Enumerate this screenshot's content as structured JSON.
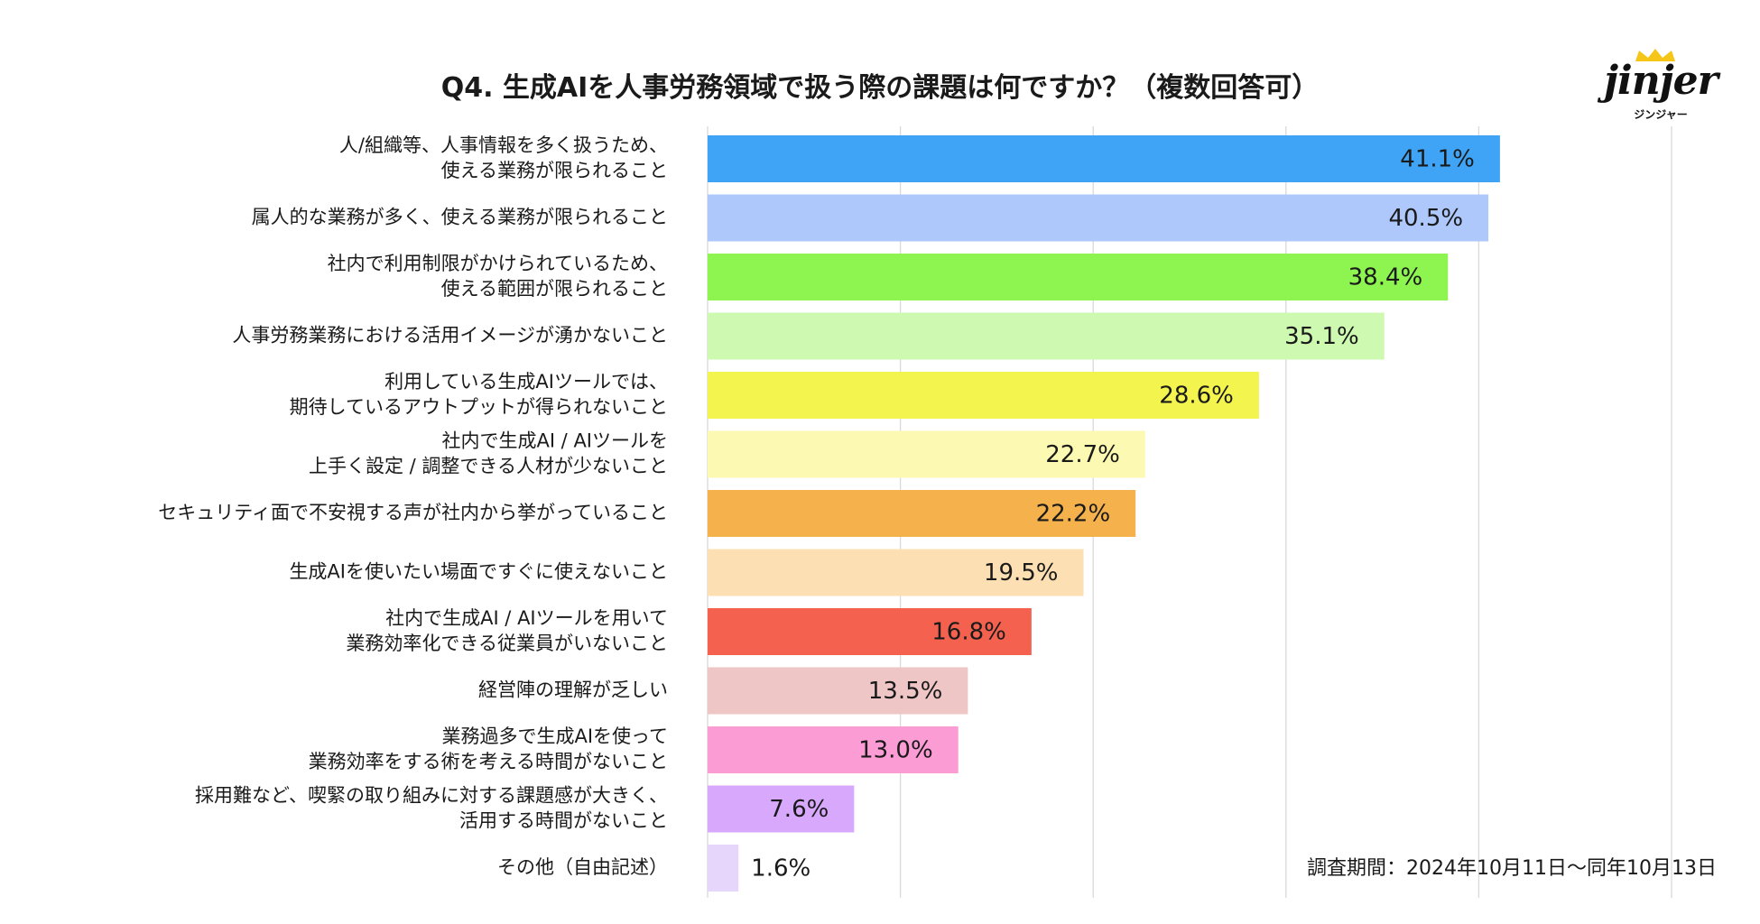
{
  "chart_data": {
    "type": "bar",
    "orientation": "horizontal",
    "title": "Q4. 生成AIを人事労務領域で扱う際の課題は何ですか？（複数回答可）",
    "categories": [
      [
        "人/組織等、人事情報を多く扱うため、",
        "使える業務が限られること"
      ],
      [
        "属人的な業務が多く、使える業務が限られること"
      ],
      [
        "社内で利用制限がかけられているため、",
        "使える範囲が限られること"
      ],
      [
        "人事労務業務における活用イメージが湧かないこと"
      ],
      [
        "利用している生成AIツールでは、",
        "期待しているアウトプットが得られないこと"
      ],
      [
        "社内で生成AI / AIツールを",
        "上手く設定 / 調整できる人材が少ないこと"
      ],
      [
        "セキュリティ面で不安視する声が社内から挙がっていること"
      ],
      [
        "生成AIを使いたい場面ですぐに使えないこと"
      ],
      [
        "社内で生成AI / AIツールを用いて",
        "業務効率化できる従業員がいないこと"
      ],
      [
        "経営陣の理解が乏しい"
      ],
      [
        "業務過多で生成AIを使って",
        "業務効率をする術を考える時間がないこと"
      ],
      [
        "採用難など、喫緊の取り組みに対する課題感が大きく、",
        "活用する時間がないこと"
      ],
      [
        "その他（自由記述）"
      ]
    ],
    "values": [
      41.1,
      40.5,
      38.4,
      35.1,
      28.6,
      22.7,
      22.2,
      19.5,
      16.8,
      13.5,
      13.0,
      7.6,
      1.6
    ],
    "value_labels": [
      "41.1%",
      "40.5%",
      "38.4%",
      "35.1%",
      "28.6%",
      "22.7%",
      "22.2%",
      "19.5%",
      "16.8%",
      "13.5%",
      "13.0%",
      "7.6%",
      "1.6%"
    ],
    "colors": [
      "#3fa4f5",
      "#aec8fb",
      "#8ef44f",
      "#cef9b1",
      "#f4f44e",
      "#fcfab2",
      "#f4b14c",
      "#fcdfb3",
      "#f4614e",
      "#efc6c6",
      "#fb9cd4",
      "#d7a8fb",
      "#e6d6fb"
    ],
    "xlim": [
      0,
      50
    ],
    "grid": true,
    "xlabel": "",
    "ylabel": ""
  },
  "survey_period": "調査期間：2024年10月11日〜同年10月13日",
  "logo": {
    "text": "jinjer",
    "subtext": "ジンジャー"
  }
}
